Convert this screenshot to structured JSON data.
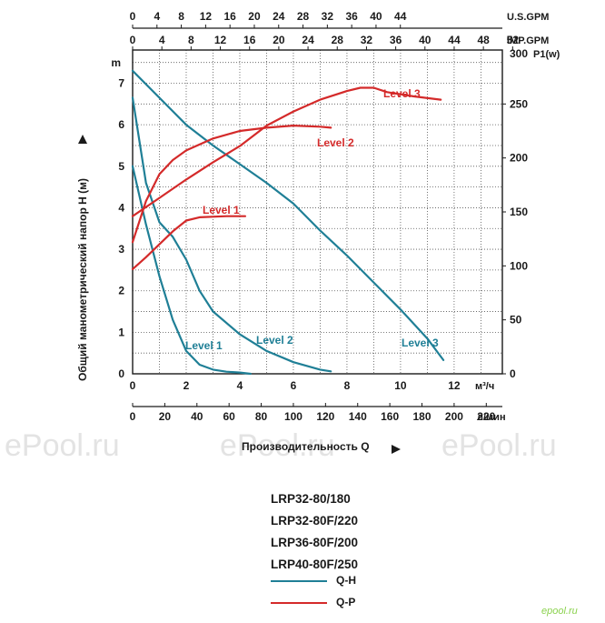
{
  "chart_data": {
    "type": "line",
    "ylabel": "Общий манометрический напор H (м)",
    "y_unit": "m",
    "y2_unit": "P1(w)",
    "xlabel": "Производительность Q",
    "x_units": {
      "m3h": "м³/ч",
      "lmin": "л/мин",
      "usgpm": "U.S.GPM",
      "impgpm": "IMP.GPM"
    },
    "x_ticks_m3h": [
      0,
      2,
      4,
      6,
      8,
      10,
      12
    ],
    "x_ticks_lmin": [
      0,
      20,
      40,
      60,
      80,
      100,
      120,
      140,
      160,
      180,
      200,
      220
    ],
    "x_ticks_usgpm": [
      0,
      4,
      8,
      12,
      16,
      20,
      24,
      28,
      32,
      36,
      40,
      44
    ],
    "x_ticks_impgpm": [
      0,
      4,
      8,
      12,
      16,
      20,
      24,
      28,
      32,
      36,
      40,
      44,
      48,
      52
    ],
    "y_ticks": [
      0,
      1,
      2,
      3,
      4,
      5,
      6,
      7
    ],
    "y2_ticks": [
      0,
      50,
      100,
      150,
      200,
      250,
      300
    ],
    "xlim_m3h": [
      0,
      13.8
    ],
    "ylim": [
      0,
      7.8
    ],
    "y2lim": [
      0,
      300
    ],
    "grid": true,
    "series_qh": [
      {
        "name": "Level 1",
        "color": "#1f7f96",
        "values": [
          [
            0,
            5.0
          ],
          [
            0.5,
            3.6
          ],
          [
            1.0,
            2.35
          ],
          [
            1.5,
            1.3
          ],
          [
            2.0,
            0.55
          ],
          [
            2.5,
            0.22
          ],
          [
            3.0,
            0.1
          ],
          [
            3.5,
            0.05
          ],
          [
            4.0,
            0.03
          ],
          [
            4.4,
            0.0
          ]
        ]
      },
      {
        "name": "Level 2",
        "color": "#1f7f96",
        "values": [
          [
            0,
            6.65
          ],
          [
            0.5,
            4.6
          ],
          [
            1.0,
            3.65
          ],
          [
            1.5,
            3.3
          ],
          [
            2.0,
            2.75
          ],
          [
            2.5,
            2.0
          ],
          [
            3.0,
            1.5
          ],
          [
            4.0,
            0.95
          ],
          [
            5.0,
            0.55
          ],
          [
            6.0,
            0.28
          ],
          [
            7.0,
            0.1
          ],
          [
            7.4,
            0.06
          ]
        ]
      },
      {
        "name": "Level 3",
        "color": "#1f7f96",
        "values": [
          [
            0,
            7.3
          ],
          [
            1.0,
            6.65
          ],
          [
            2.0,
            6.0
          ],
          [
            3.0,
            5.5
          ],
          [
            4.0,
            5.05
          ],
          [
            5.0,
            4.6
          ],
          [
            6.0,
            4.1
          ],
          [
            7.0,
            3.45
          ],
          [
            8.0,
            2.85
          ],
          [
            9.0,
            2.2
          ],
          [
            10.0,
            1.55
          ],
          [
            11.0,
            0.85
          ],
          [
            11.6,
            0.33
          ]
        ]
      }
    ],
    "series_qp": [
      {
        "name": "Level 1",
        "color": "#d42a2a",
        "values": [
          [
            0,
            97
          ],
          [
            0.5,
            108
          ],
          [
            1.0,
            120
          ],
          [
            1.5,
            132
          ],
          [
            2.0,
            142
          ],
          [
            2.5,
            145
          ],
          [
            3.5,
            146
          ],
          [
            4.2,
            146
          ]
        ]
      },
      {
        "name": "Level 2",
        "color": "#d42a2a",
        "values": [
          [
            0,
            122
          ],
          [
            0.5,
            160
          ],
          [
            1.0,
            185
          ],
          [
            1.5,
            198
          ],
          [
            2.0,
            207
          ],
          [
            3.0,
            218
          ],
          [
            4.0,
            225
          ],
          [
            5.0,
            228
          ],
          [
            6.0,
            230
          ],
          [
            7.0,
            229
          ],
          [
            7.4,
            228
          ]
        ]
      },
      {
        "name": "Level 3",
        "color": "#d42a2a",
        "values": [
          [
            0,
            146
          ],
          [
            1.0,
            163
          ],
          [
            2.0,
            180
          ],
          [
            3.0,
            196
          ],
          [
            4.0,
            211
          ],
          [
            5.0,
            230
          ],
          [
            6.0,
            243
          ],
          [
            7.0,
            254
          ],
          [
            8.0,
            262
          ],
          [
            8.5,
            265
          ],
          [
            9.0,
            265
          ],
          [
            9.5,
            261
          ],
          [
            10.5,
            257
          ],
          [
            11.5,
            254
          ]
        ]
      }
    ],
    "level_labels": [
      "Level 1",
      "Level 2",
      "Level 3"
    ]
  },
  "models": [
    "LRP32-80/180",
    "LRP32-80F/220",
    "LRP36-80F/200",
    "LRP40-80F/250"
  ],
  "legend": {
    "qh": "Q-H",
    "qp": "Q-P",
    "qh_color": "#1f7f96",
    "qp_color": "#d42a2a"
  },
  "watermark": "ePool.ru",
  "brand": "epool.ru"
}
